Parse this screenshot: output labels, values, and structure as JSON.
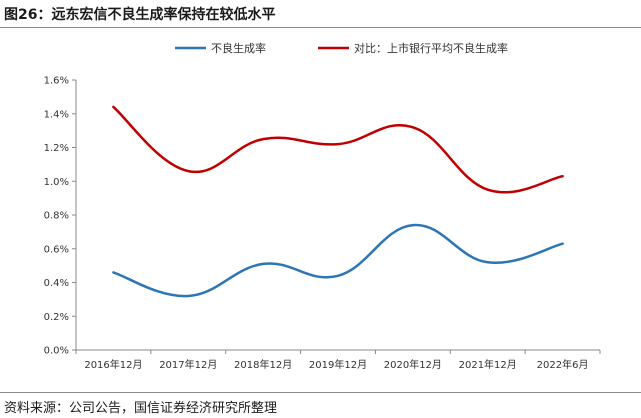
{
  "header": {
    "title": "图26：远东宏信不良生成率保持在较低水平"
  },
  "footer": {
    "source": "资料来源：公司公告，国信证券经济研究所整理"
  },
  "colors": {
    "series1": "#2e75b6",
    "series2": "#c00000",
    "axis": "#888888"
  },
  "chart_data": {
    "type": "line",
    "smooth": true,
    "categories": [
      "2016年12月",
      "2017年12月",
      "2018年12月",
      "2019年12月",
      "2020年12月",
      "2021年12月",
      "2022年6月"
    ],
    "series": [
      {
        "name": "不良生成率",
        "values": [
          0.46,
          0.32,
          0.51,
          0.44,
          0.74,
          0.52,
          0.63
        ]
      },
      {
        "name": "对比：上市银行平均不良生成率",
        "values": [
          1.44,
          1.06,
          1.25,
          1.22,
          1.32,
          0.95,
          1.03
        ]
      }
    ],
    "ylim": [
      0.0,
      1.6
    ],
    "yticks": [
      "0.0%",
      "0.2%",
      "0.4%",
      "0.6%",
      "0.8%",
      "1.0%",
      "1.2%",
      "1.4%",
      "1.6%"
    ],
    "grid": false,
    "legend": "top-center"
  }
}
